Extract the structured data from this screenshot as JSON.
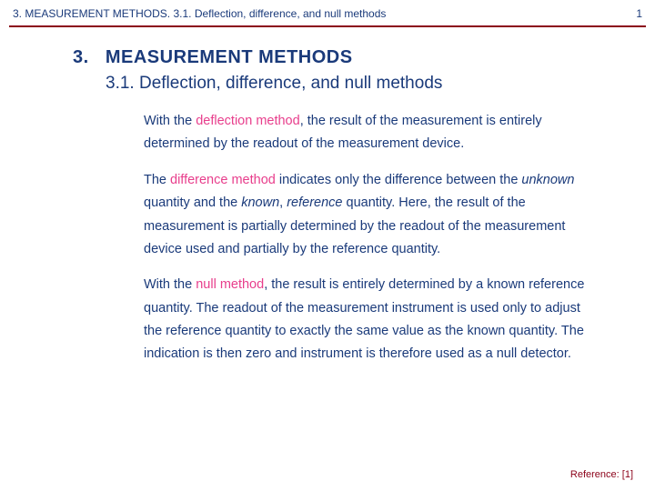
{
  "header": {
    "left": "3. MEASUREMENT METHODS. 3.1. Deflection, difference, and null methods",
    "page": "1"
  },
  "rule_color": "#8b0018",
  "title_color": "#1a3a7a",
  "text_color": "#1a3a7a",
  "highlight_color": "#e83e8c",
  "chapter_number": "3.",
  "chapter_title": "MEASUREMENT METHODS",
  "section_title": "3.1. Deflection, difference, and null methods",
  "paragraphs": {
    "p1_a": "With the ",
    "p1_hl": "deflection method",
    "p1_b": ", the result of the measurement is entirely determined by the readout of the measurement device.",
    "p2_a": "The ",
    "p2_hl": "difference method",
    "p2_b": " indicates only the difference between the ",
    "p2_it1": "unknown",
    "p2_c": " quantity and the ",
    "p2_it2": "known",
    "p2_d": ", ",
    "p2_it3": "reference",
    "p2_e": " quantity.   Here, the result of the measurement is partially determined by the readout of the measurement device used and partially by the reference quantity.",
    "p3_a": "With the ",
    "p3_hl": "null method",
    "p3_b": ", the result is entirely determined by a known reference quantity. The readout of the measurement instrument is used only to adjust the reference quantity to exactly the same value as the known quantity. The indication is then zero and instrument is therefore used as a null detector."
  },
  "footer": "Reference: [1]"
}
